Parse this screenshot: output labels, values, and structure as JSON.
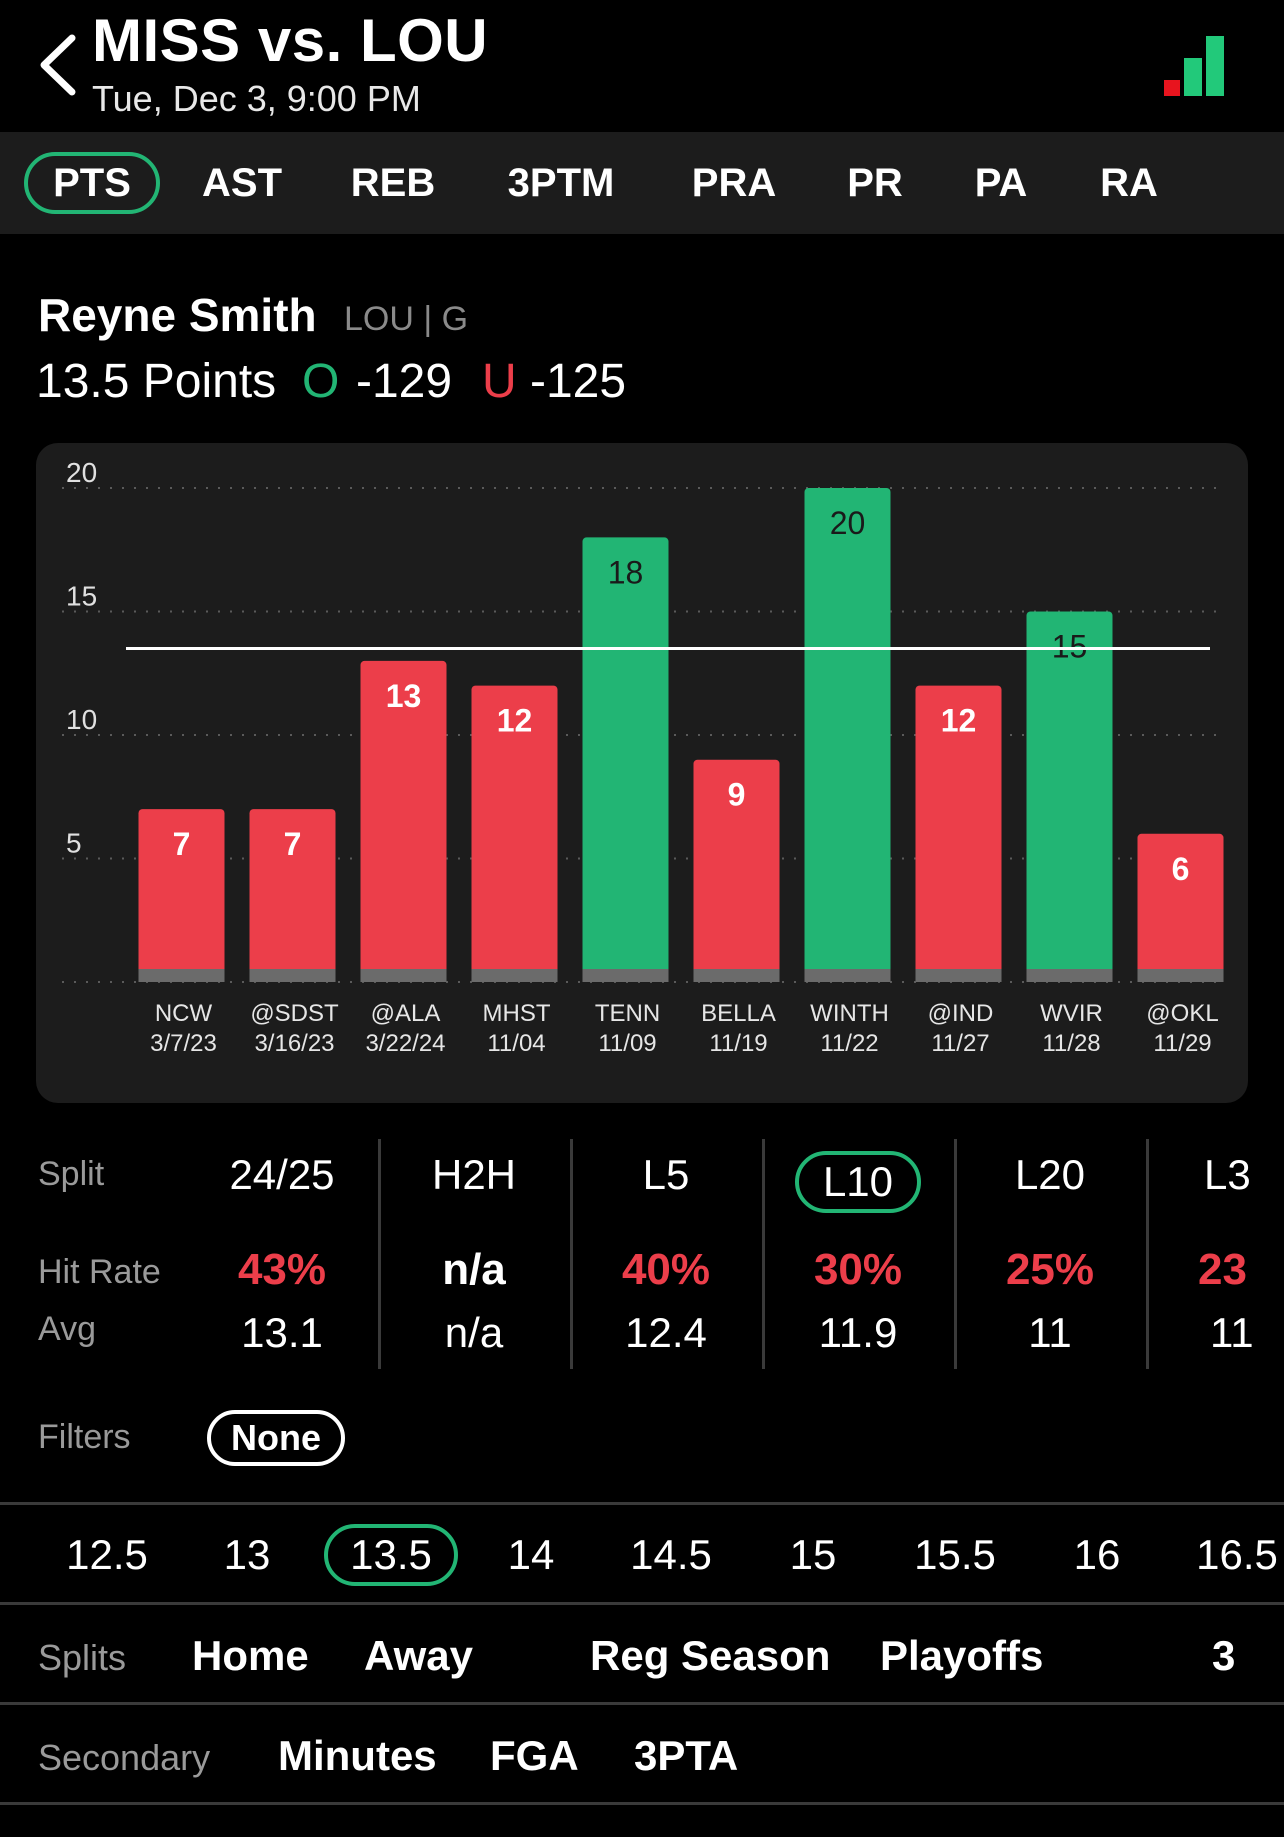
{
  "header": {
    "title": "MISS vs. LOU",
    "subtitle": "Tue, Dec 3, 9:00 PM"
  },
  "colors": {
    "over": "#22b574",
    "under": "#ec3e4a",
    "background": "#000000",
    "card": "#1c1c1c"
  },
  "stat_tabs": [
    {
      "label": "PTS",
      "active": true
    },
    {
      "label": "AST",
      "active": false
    },
    {
      "label": "REB",
      "active": false
    },
    {
      "label": "3PTM",
      "active": false
    },
    {
      "label": "PRA",
      "active": false
    },
    {
      "label": "PR",
      "active": false
    },
    {
      "label": "PA",
      "active": false
    },
    {
      "label": "RA",
      "active": false
    }
  ],
  "player": {
    "name": "Reyne Smith",
    "meta": "LOU | G",
    "line_label": "13.5 Points",
    "over_letter": "O",
    "over_odds": "-129",
    "under_letter": "U",
    "under_odds": "-125"
  },
  "chart_data": {
    "type": "bar",
    "categories": [
      "NCW",
      "@SDST",
      "@ALA",
      "MHST",
      "TENN",
      "BELLA",
      "WINTH",
      "@IND",
      "WVIR",
      "@OKL"
    ],
    "dates": [
      "3/7/23",
      "3/16/23",
      "3/22/24",
      "11/04",
      "11/09",
      "11/19",
      "11/22",
      "11/27",
      "11/28",
      "11/29"
    ],
    "values": [
      7,
      7,
      13,
      12,
      18,
      9,
      20,
      12,
      15,
      6
    ],
    "hit": [
      false,
      false,
      false,
      false,
      true,
      false,
      true,
      false,
      true,
      false
    ],
    "line": 13.5,
    "ylim": [
      0,
      20
    ],
    "yticks": [
      5,
      10,
      15,
      20
    ],
    "grid": true
  },
  "splits": {
    "header_label": "Split",
    "hit_rate_label": "Hit Rate",
    "avg_label": "Avg",
    "columns": [
      {
        "label": "24/25",
        "hit_rate": "43%",
        "avg": "13.1",
        "active": false
      },
      {
        "label": "H2H",
        "hit_rate": "n/a",
        "avg": "n/a",
        "active": false
      },
      {
        "label": "L5",
        "hit_rate": "40%",
        "avg": "12.4",
        "active": false
      },
      {
        "label": "L10",
        "hit_rate": "30%",
        "avg": "11.9",
        "active": true
      },
      {
        "label": "L20",
        "hit_rate": "25%",
        "avg": "11",
        "active": false
      },
      {
        "label": "L3",
        "hit_rate": "23",
        "avg": "11",
        "active": false
      }
    ]
  },
  "filters": {
    "label": "Filters",
    "value": "None"
  },
  "line_options": [
    "12.5",
    "13",
    "13.5",
    "14",
    "14.5",
    "15",
    "15.5",
    "16",
    "16.5"
  ],
  "line_selected": "13.5",
  "split_row": {
    "label": "Splits",
    "options": [
      "Home",
      "Away",
      "Reg Season",
      "Playoffs",
      "3"
    ]
  },
  "secondary_row": {
    "label": "Secondary",
    "options": [
      "Minutes",
      "FGA",
      "3PTA"
    ]
  }
}
